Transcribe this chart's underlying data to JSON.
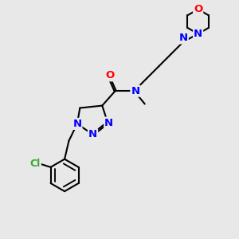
{
  "bg_color": "#e8e8e8",
  "bond_color": "#000000",
  "N_color": "#0000ff",
  "O_color": "#ff0000",
  "Cl_color": "#33aa33",
  "lw": 1.5,
  "fs": 9.5,
  "xlim": [
    0,
    10
  ],
  "ylim": [
    0,
    10
  ]
}
